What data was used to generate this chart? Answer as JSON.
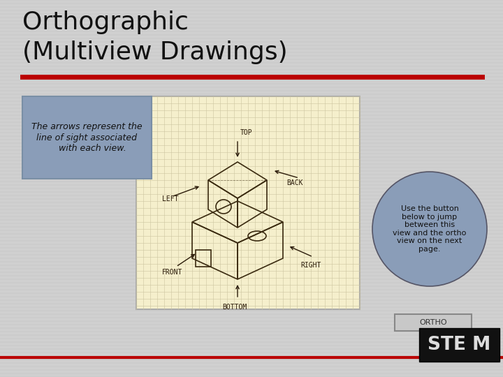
{
  "background_color": "#d0d0d0",
  "title_line1": "Orthographic",
  "title_line2": "(Multiview Drawings)",
  "title_color": "#111111",
  "title_fontsize": 26,
  "red_line_color": "#bb0000",
  "text_box_text": "The arrows represent the\nline of sight associated\n    with each view.",
  "text_box_bg": "#8a9db8",
  "text_box_border": "#7a8fa5",
  "circle_text": "Use the button\nbelow to jump\nbetween this\nview and the ortho\nview on the next\npage.",
  "circle_bg": "#8a9db8",
  "circle_border": "#555566",
  "ortho_button_text": "ORTHO",
  "ortho_button_bg": "#c8c8c8",
  "ortho_button_border": "#888888",
  "stem_bg": "#111111",
  "image_bg": "#f5efcc",
  "image_border": "#aaaaaa",
  "grid_color": "#ccc4a0",
  "sketch_color": "#3a2a10",
  "label_color": "#2a1a08"
}
